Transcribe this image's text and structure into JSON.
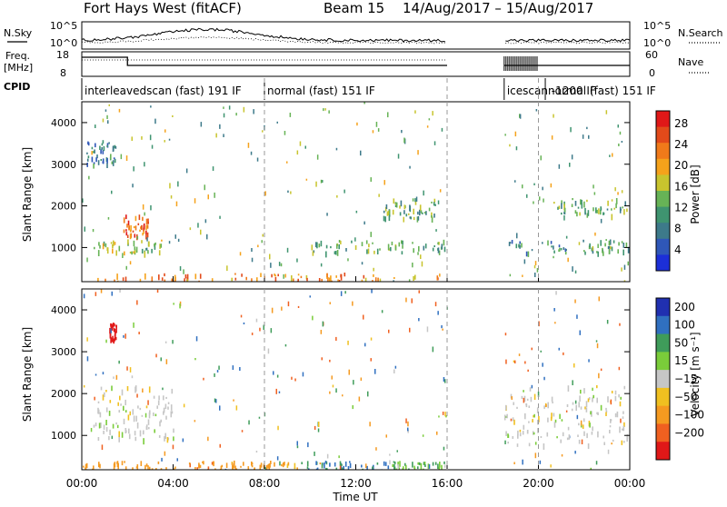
{
  "header": {
    "title": "Fort Hays West (fitACF)",
    "beam": "Beam 15",
    "date_range": "14/Aug/2017 – 15/Aug/2017"
  },
  "aux": {
    "nsky_label": "N.Sky",
    "nsearch_label": "N.Search",
    "freq_label_line1": "Freq.",
    "freq_label_line2": "[MHz]",
    "nave_label": "Nave",
    "cpid_label": "CPID",
    "noise_ticks_left": [
      "10^5",
      "10^0"
    ],
    "noise_ticks_right": [
      "10^5",
      "10^0"
    ],
    "freq_ticks": [
      "18",
      "8"
    ],
    "nave_ticks": [
      "60",
      "0"
    ]
  },
  "cpid_segments": [
    {
      "label": "interleavedscan (fast) 191 IF",
      "start_hour": 0,
      "end_hour": 8
    },
    {
      "label": "normal (fast) 151 IF",
      "start_hour": 8,
      "end_hour": 16
    },
    {
      "label": "icescan -1200 IF",
      "start_hour": 18.5,
      "end_hour": 20.3
    },
    {
      "label": "normal (fast) 151 IF",
      "start_hour": 20.3,
      "end_hour": 24
    }
  ],
  "panels": {
    "power": {
      "cbar_label": "Power [dB]",
      "cbar_ticks": [
        "28",
        "24",
        "20",
        "16",
        "12",
        "8",
        "4"
      ]
    },
    "velocity": {
      "cbar_label": "Velocity [m s⁻¹]",
      "cbar_ticks": [
        "200",
        "100",
        "50",
        "15",
        "−15",
        "−50",
        "−100",
        "−200"
      ]
    }
  },
  "axes": {
    "ylabel": "Slant Range [km]",
    "xlabel": "Time UT",
    "yticks": [
      "4000",
      "3000",
      "2000",
      "1000"
    ],
    "xticks": [
      "00:00",
      "04:00",
      "08:00",
      "12:00",
      "16:00",
      "20:00",
      "00:00"
    ]
  },
  "chart_data": [
    {
      "type": "heatmap",
      "title": "Fort Hays West (fitACF) Beam 15 14/Aug/2017 – 15/Aug/2017",
      "quantity": "power",
      "xlabel": "Time UT",
      "ylabel": "Slant Range [km]",
      "x_range_hours": [
        0,
        24
      ],
      "ylim": [
        180,
        4500
      ],
      "colorbar": {
        "label": "Power [dB]",
        "range": [
          0,
          30
        ],
        "ticks": [
          4,
          8,
          12,
          16,
          20,
          24,
          28
        ]
      },
      "data_gap_hours": [
        16,
        18.5
      ],
      "features": [
        {
          "t_start": 0.0,
          "t_end": 16.0,
          "range_start": 180,
          "range_end": 400,
          "power_db": 22
        },
        {
          "t_start": 1.8,
          "t_end": 2.9,
          "range_start": 1300,
          "range_end": 1800,
          "power_db": 24
        },
        {
          "t_start": 0.5,
          "t_end": 3.5,
          "range_start": 900,
          "range_end": 1200,
          "power_db": 14
        },
        {
          "t_start": 0.2,
          "t_end": 1.5,
          "range_start": 3000,
          "range_end": 3600,
          "power_db": 8
        },
        {
          "t_start": 10.0,
          "t_end": 16.0,
          "range_start": 900,
          "range_end": 1200,
          "power_db": 12
        },
        {
          "t_start": 13.0,
          "t_end": 15.5,
          "range_start": 1700,
          "range_end": 2200,
          "power_db": 12
        },
        {
          "t_start": 18.5,
          "t_end": 24.0,
          "range_start": 900,
          "range_end": 1200,
          "power_db": 10
        },
        {
          "t_start": 20.5,
          "t_end": 24.0,
          "range_start": 1800,
          "range_end": 2200,
          "power_db": 12
        }
      ]
    },
    {
      "type": "heatmap",
      "quantity": "velocity",
      "xlabel": "Time UT",
      "ylabel": "Slant Range [km]",
      "x_range_hours": [
        0,
        24
      ],
      "ylim": [
        180,
        4500
      ],
      "colorbar": {
        "label": "Velocity [m s⁻¹]",
        "ticks": [
          200,
          100,
          50,
          15,
          -15,
          -50,
          -100,
          -200
        ]
      },
      "data_gap_hours": [
        16,
        18.5
      ],
      "features": [
        {
          "t_start": 0.0,
          "t_end": 6.0,
          "range_start": 180,
          "range_end": 400,
          "velocity": -60
        },
        {
          "t_start": 6.0,
          "t_end": 9.5,
          "range_start": 180,
          "range_end": 400,
          "velocity": -40
        },
        {
          "t_start": 9.5,
          "t_end": 13.5,
          "range_start": 180,
          "range_end": 400,
          "velocity": 80
        },
        {
          "t_start": 13.5,
          "t_end": 16.0,
          "range_start": 180,
          "range_end": 400,
          "velocity": 30
        },
        {
          "t_start": 1.2,
          "t_end": 1.5,
          "range_start": 3300,
          "range_end": 3700,
          "velocity": -200
        },
        {
          "t_start": 0.5,
          "t_end": 4.0,
          "range_start": 900,
          "range_end": 2200,
          "velocity": 0
        },
        {
          "t_start": 18.5,
          "t_end": 24.0,
          "range_start": 800,
          "range_end": 2200,
          "velocity": 0
        }
      ]
    }
  ]
}
